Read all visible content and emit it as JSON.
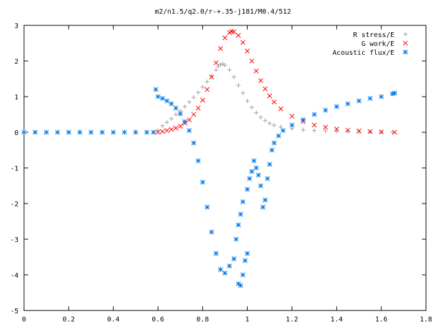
{
  "chart_data": {
    "type": "scatter",
    "title": "m2/n1.5/q2.0/r-+.35-j181/M0.4/512",
    "xlabel": "",
    "ylabel": "",
    "xlim": [
      0,
      1.8
    ],
    "ylim": [
      -5,
      3
    ],
    "xticks": [
      "0",
      "0.2",
      "0.4",
      "0.6",
      "0.8",
      "1",
      "1.2",
      "1.4",
      "1.6",
      "1.8"
    ],
    "yticks": [
      "3",
      "2",
      "1",
      "0",
      "-1",
      "-2",
      "-3",
      "-4",
      "-5"
    ],
    "grid": false,
    "legend_position": "top-right",
    "series": [
      {
        "name": "R stress/E",
        "marker": "+",
        "color": "#a0a0a0",
        "points": [
          [
            0.0,
            0
          ],
          [
            0.05,
            0
          ],
          [
            0.1,
            0
          ],
          [
            0.15,
            0
          ],
          [
            0.2,
            0
          ],
          [
            0.25,
            0
          ],
          [
            0.3,
            0
          ],
          [
            0.35,
            0
          ],
          [
            0.4,
            0
          ],
          [
            0.45,
            0
          ],
          [
            0.5,
            0
          ],
          [
            0.55,
            0
          ],
          [
            0.58,
            0
          ],
          [
            0.6,
            0.05
          ],
          [
            0.62,
            0.18
          ],
          [
            0.64,
            0.28
          ],
          [
            0.66,
            0.38
          ],
          [
            0.68,
            0.5
          ],
          [
            0.7,
            0.6
          ],
          [
            0.72,
            0.72
          ],
          [
            0.74,
            0.85
          ],
          [
            0.76,
            0.98
          ],
          [
            0.78,
            1.12
          ],
          [
            0.8,
            1.27
          ],
          [
            0.82,
            1.42
          ],
          [
            0.84,
            1.58
          ],
          [
            0.86,
            1.75
          ],
          [
            0.87,
            1.85
          ],
          [
            0.88,
            1.9
          ],
          [
            0.89,
            1.92
          ],
          [
            0.9,
            1.88
          ],
          [
            0.92,
            1.75
          ],
          [
            0.94,
            1.55
          ],
          [
            0.96,
            1.32
          ],
          [
            0.98,
            1.1
          ],
          [
            1.0,
            0.88
          ],
          [
            1.02,
            0.7
          ],
          [
            1.04,
            0.55
          ],
          [
            1.06,
            0.42
          ],
          [
            1.08,
            0.33
          ],
          [
            1.1,
            0.25
          ],
          [
            1.12,
            0.2
          ],
          [
            1.15,
            0.15
          ],
          [
            1.2,
            0.1
          ],
          [
            1.25,
            0.07
          ],
          [
            1.3,
            0.05
          ],
          [
            1.35,
            0.04
          ],
          [
            1.4,
            0.03
          ],
          [
            1.45,
            0.02
          ],
          [
            1.5,
            0.01
          ],
          [
            1.55,
            0.01
          ],
          [
            1.6,
            0.0
          ],
          [
            1.65,
            0.0
          ]
        ]
      },
      {
        "name": "G work/E",
        "marker": "x",
        "color": "#ff0000",
        "points": [
          [
            0.6,
            0.0
          ],
          [
            0.62,
            0.02
          ],
          [
            0.64,
            0.05
          ],
          [
            0.66,
            0.08
          ],
          [
            0.68,
            0.12
          ],
          [
            0.7,
            0.17
          ],
          [
            0.72,
            0.25
          ],
          [
            0.74,
            0.35
          ],
          [
            0.76,
            0.5
          ],
          [
            0.78,
            0.68
          ],
          [
            0.8,
            0.9
          ],
          [
            0.82,
            1.2
          ],
          [
            0.84,
            1.55
          ],
          [
            0.86,
            1.95
          ],
          [
            0.88,
            2.35
          ],
          [
            0.9,
            2.65
          ],
          [
            0.92,
            2.8
          ],
          [
            0.93,
            2.83
          ],
          [
            0.94,
            2.82
          ],
          [
            0.96,
            2.72
          ],
          [
            0.98,
            2.52
          ],
          [
            1.0,
            2.28
          ],
          [
            1.02,
            2.0
          ],
          [
            1.04,
            1.72
          ],
          [
            1.06,
            1.45
          ],
          [
            1.08,
            1.22
          ],
          [
            1.1,
            1.02
          ],
          [
            1.12,
            0.85
          ],
          [
            1.15,
            0.66
          ],
          [
            1.2,
            0.45
          ],
          [
            1.25,
            0.3
          ],
          [
            1.3,
            0.2
          ],
          [
            1.35,
            0.14
          ],
          [
            1.4,
            0.09
          ],
          [
            1.45,
            0.06
          ],
          [
            1.5,
            0.04
          ],
          [
            1.55,
            0.02
          ],
          [
            1.6,
            0.01
          ],
          [
            1.66,
            0.0
          ]
        ]
      },
      {
        "name": "Acoustic flux/E",
        "marker": "*",
        "color": "#0078e7",
        "points": [
          [
            0.0,
            0
          ],
          [
            0.05,
            0
          ],
          [
            0.1,
            0
          ],
          [
            0.15,
            0
          ],
          [
            0.2,
            0
          ],
          [
            0.25,
            0
          ],
          [
            0.3,
            0
          ],
          [
            0.35,
            0
          ],
          [
            0.4,
            0
          ],
          [
            0.45,
            0
          ],
          [
            0.5,
            0
          ],
          [
            0.55,
            0
          ],
          [
            0.58,
            0
          ],
          [
            0.59,
            1.2
          ],
          [
            0.6,
            1.0
          ],
          [
            0.62,
            0.95
          ],
          [
            0.64,
            0.88
          ],
          [
            0.66,
            0.8
          ],
          [
            0.68,
            0.68
          ],
          [
            0.7,
            0.52
          ],
          [
            0.72,
            0.3
          ],
          [
            0.74,
            0.05
          ],
          [
            0.76,
            -0.3
          ],
          [
            0.78,
            -0.8
          ],
          [
            0.8,
            -1.4
          ],
          [
            0.82,
            -2.1
          ],
          [
            0.84,
            -2.8
          ],
          [
            0.86,
            -3.4
          ],
          [
            0.88,
            -3.85
          ],
          [
            0.9,
            -3.95
          ],
          [
            0.92,
            -3.75
          ],
          [
            0.94,
            -3.55
          ],
          [
            0.96,
            -4.25
          ],
          [
            0.97,
            -4.3
          ],
          [
            0.98,
            -4.0
          ],
          [
            0.99,
            -3.6
          ],
          [
            1.0,
            -3.4
          ],
          [
            0.95,
            -3.0
          ],
          [
            0.96,
            -2.6
          ],
          [
            0.97,
            -2.3
          ],
          [
            0.98,
            -1.95
          ],
          [
            1.0,
            -1.6
          ],
          [
            1.01,
            -1.3
          ],
          [
            1.02,
            -1.1
          ],
          [
            1.03,
            -0.8
          ],
          [
            1.04,
            -1.0
          ],
          [
            1.05,
            -1.2
          ],
          [
            1.06,
            -1.5
          ],
          [
            1.07,
            -2.1
          ],
          [
            1.08,
            -1.9
          ],
          [
            1.09,
            -1.3
          ],
          [
            1.1,
            -0.9
          ],
          [
            1.11,
            -0.5
          ],
          [
            1.12,
            -0.3
          ],
          [
            1.14,
            -0.1
          ],
          [
            1.16,
            0.05
          ],
          [
            1.2,
            0.2
          ],
          [
            1.25,
            0.35
          ],
          [
            1.3,
            0.5
          ],
          [
            1.35,
            0.62
          ],
          [
            1.4,
            0.72
          ],
          [
            1.45,
            0.8
          ],
          [
            1.5,
            0.88
          ],
          [
            1.55,
            0.95
          ],
          [
            1.6,
            1.0
          ],
          [
            1.65,
            1.08
          ],
          [
            1.66,
            1.1
          ]
        ]
      }
    ]
  }
}
